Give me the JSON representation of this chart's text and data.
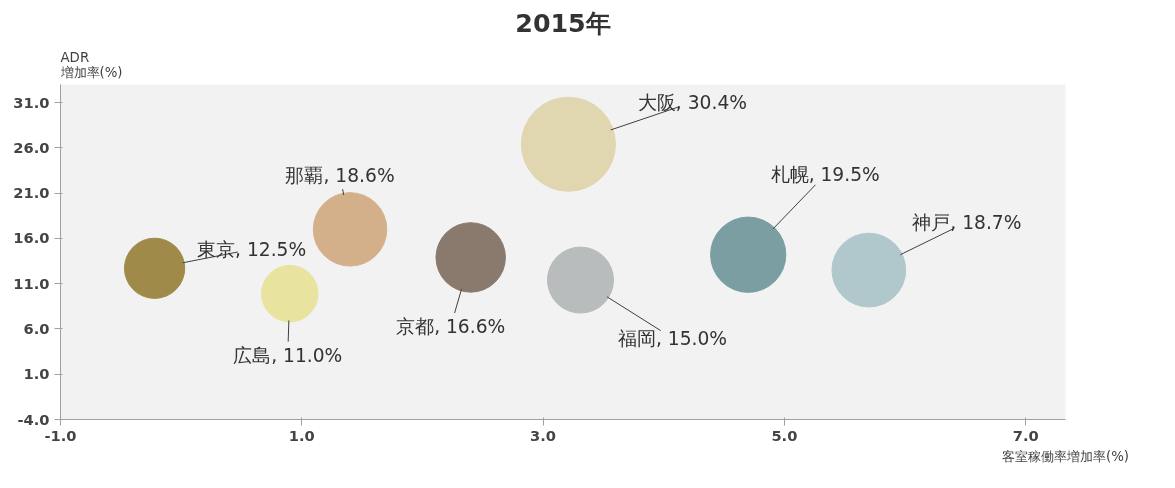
{
  "chart_data": {
    "type": "bubble",
    "title": "2015年",
    "xlabel": "客室稼働率増加率(%)",
    "ylabel": "ADR\n増加率(%)",
    "x": [
      -0.22,
      0.9,
      1.4,
      2.4,
      3.21,
      3.31,
      4.7,
      5.7
    ],
    "values": [
      12.7,
      9.9,
      17.0,
      13.9,
      26.4,
      11.4,
      14.2,
      12.5
    ],
    "sizes": [
      12.5,
      11.0,
      18.6,
      16.6,
      30.4,
      15.0,
      19.5,
      18.7
    ],
    "value_labels": [
      "東京, 12.5%",
      "広島, 11.0%",
      "那覇, 18.6%",
      "京都, 16.6%",
      "大阪, 30.4%",
      "福岡, 15.0%",
      "札幌, 19.5%",
      "神戸, 18.7%"
    ],
    "colors": [
      "#a08a4a",
      "#e8e4a0",
      "#d4b08a",
      "#8a7a6e",
      "#e0d6b0",
      "#b8bcbc",
      "#7a9ea2",
      "#b0c8cc"
    ],
    "xlim": [
      -1.0,
      7.33
    ],
    "ylim": [
      -4.0,
      33.0
    ],
    "xticks": [
      {
        "value": -1,
        "label": "-1.0"
      },
      {
        "value": 1,
        "label": "1.0"
      },
      {
        "value": 3,
        "label": "3.0"
      },
      {
        "value": 5,
        "label": "5.0"
      },
      {
        "value": 7,
        "label": "7.0"
      }
    ],
    "yticks": [
      {
        "value": -4,
        "label": "-4.0"
      },
      {
        "value": 1,
        "label": "1.0"
      },
      {
        "value": 6,
        "label": "6.0"
      },
      {
        "value": 11,
        "label": "11.0"
      },
      {
        "value": 16,
        "label": "16.0"
      },
      {
        "value": 21,
        "label": "21.0"
      },
      {
        "value": 26,
        "label": "26.0"
      },
      {
        "value": 31,
        "label": "31.0"
      }
    ],
    "grid": false,
    "marker": "circle"
  }
}
